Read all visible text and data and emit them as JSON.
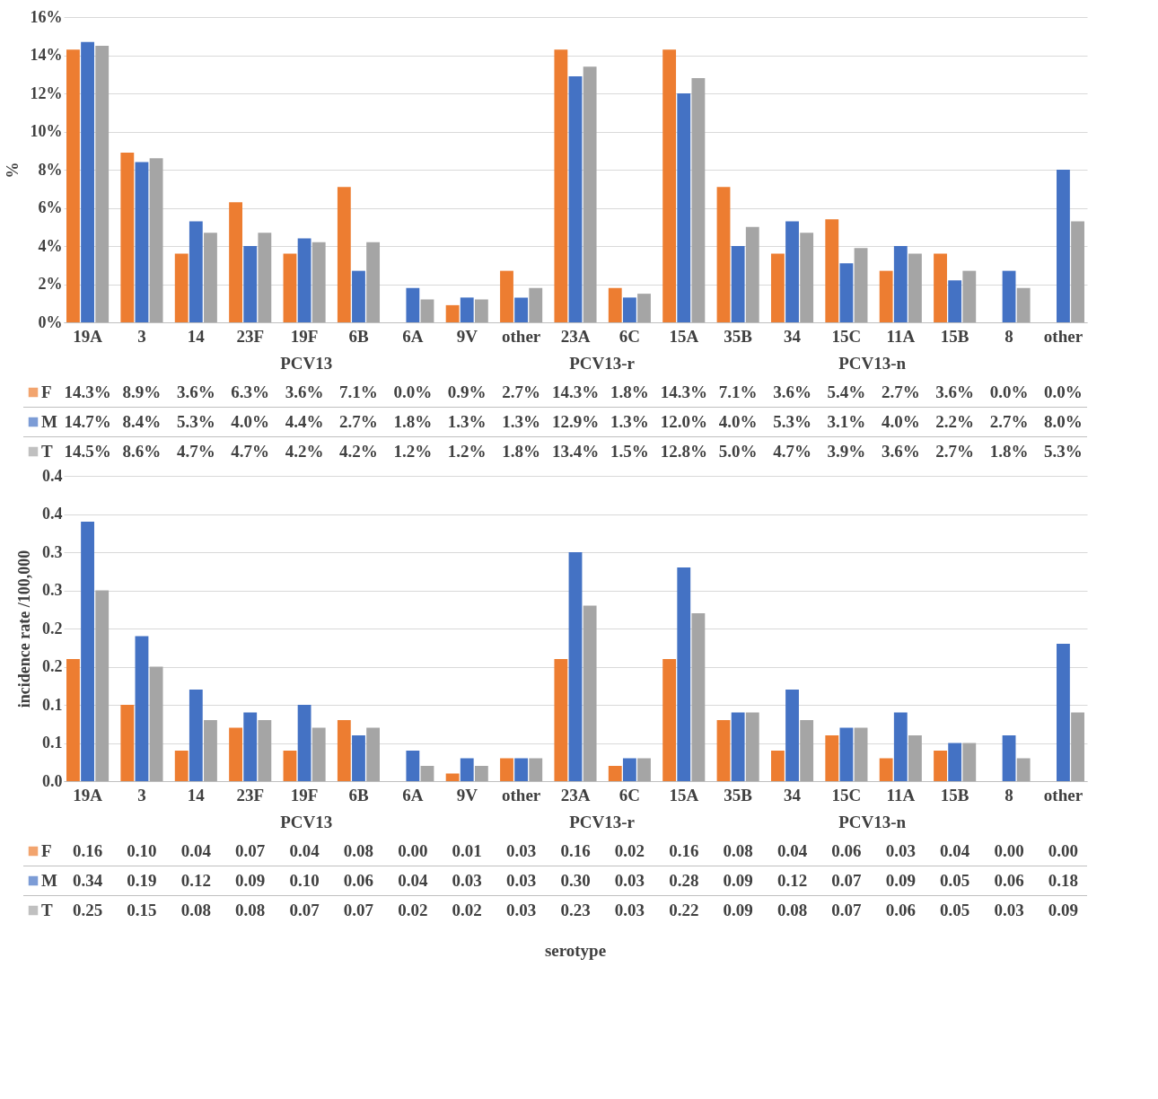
{
  "chart_data": [
    {
      "type": "bar",
      "ylabel": "%",
      "grid": "y",
      "legend": "bottom",
      "categories": [
        "19A",
        "3",
        "14",
        "23F",
        "19F",
        "6B",
        "6A",
        "9V",
        "other",
        "23A",
        "6C",
        "15A",
        "35B",
        "34",
        "15C",
        "11A",
        "15B",
        "8",
        "other"
      ],
      "ylim": [
        0,
        16
      ],
      "yticks": [
        {
          "value": 0,
          "label": "0%"
        },
        {
          "value": 2,
          "label": "2%"
        },
        {
          "value": 4,
          "label": "4%"
        },
        {
          "value": 6,
          "label": "6%"
        },
        {
          "value": 8,
          "label": "8%"
        },
        {
          "value": 10,
          "label": "10%"
        },
        {
          "value": 12,
          "label": "12%"
        },
        {
          "value": 14,
          "label": "14%"
        },
        {
          "value": 16,
          "label": "16%"
        }
      ],
      "annotations": [
        "PCV13",
        "PCV13-r",
        "PCV13-n"
      ],
      "series": [
        {
          "name": "F",
          "color": "#ed7d31",
          "values": [
            14.3,
            8.9,
            3.6,
            6.3,
            3.6,
            7.1,
            0.0,
            0.9,
            2.7,
            14.3,
            1.8,
            14.3,
            7.1,
            3.6,
            5.4,
            2.7,
            3.6,
            0.0,
            0.0
          ],
          "value_labels": [
            "14.3%",
            "8.9%",
            "3.6%",
            "6.3%",
            "3.6%",
            "7.1%",
            "0.0%",
            "0.9%",
            "2.7%",
            "14.3%",
            "1.8%",
            "14.3%",
            "7.1%",
            "3.6%",
            "5.4%",
            "2.7%",
            "3.6%",
            "0.0%",
            "0.0%"
          ]
        },
        {
          "name": "M",
          "color": "#4472c4",
          "values": [
            14.7,
            8.4,
            5.3,
            4.0,
            4.4,
            2.7,
            1.8,
            1.3,
            1.3,
            12.9,
            1.3,
            12.0,
            4.0,
            5.3,
            3.1,
            4.0,
            2.2,
            2.7,
            8.0
          ],
          "value_labels": [
            "14.7%",
            "8.4%",
            "5.3%",
            "4.0%",
            "4.4%",
            "2.7%",
            "1.8%",
            "1.3%",
            "1.3%",
            "12.9%",
            "1.3%",
            "12.0%",
            "4.0%",
            "5.3%",
            "3.1%",
            "4.0%",
            "2.2%",
            "2.7%",
            "8.0%"
          ]
        },
        {
          "name": "T",
          "color": "#a5a5a5",
          "values": [
            14.5,
            8.6,
            4.7,
            4.7,
            4.2,
            4.2,
            1.2,
            1.2,
            1.8,
            13.4,
            1.5,
            12.8,
            5.0,
            4.7,
            3.9,
            3.6,
            2.7,
            1.8,
            5.3
          ],
          "value_labels": [
            "14.5%",
            "8.6%",
            "4.7%",
            "4.7%",
            "4.2%",
            "4.2%",
            "1.2%",
            "1.2%",
            "1.8%",
            "13.4%",
            "1.5%",
            "12.8%",
            "5.0%",
            "4.7%",
            "3.9%",
            "3.6%",
            "2.7%",
            "1.8%",
            "5.3%"
          ]
        }
      ]
    },
    {
      "type": "bar",
      "ylabel": "incidence rate /100,000",
      "xlabel": "serotype",
      "grid": "y",
      "legend": "bottom",
      "categories": [
        "19A",
        "3",
        "14",
        "23F",
        "19F",
        "6B",
        "6A",
        "9V",
        "other",
        "23A",
        "6C",
        "15A",
        "35B",
        "34",
        "15C",
        "11A",
        "15B",
        "8",
        "other"
      ],
      "ylim": [
        0,
        0.4
      ],
      "yticks": [
        {
          "value": 0,
          "label": "0.0"
        },
        {
          "value": 0.05,
          "label": "0.1"
        },
        {
          "value": 0.1,
          "label": "0.1"
        },
        {
          "value": 0.15,
          "label": "0.2"
        },
        {
          "value": 0.2,
          "label": "0.2"
        },
        {
          "value": 0.25,
          "label": "0.3"
        },
        {
          "value": 0.3,
          "label": "0.3"
        },
        {
          "value": 0.35,
          "label": "0.4"
        },
        {
          "value": 0.4,
          "label": "0.4"
        }
      ],
      "annotations": [
        "PCV13",
        "PCV13-r",
        "PCV13-n"
      ],
      "series": [
        {
          "name": "F",
          "color": "#ed7d31",
          "values": [
            0.16,
            0.1,
            0.04,
            0.07,
            0.04,
            0.08,
            0.0,
            0.01,
            0.03,
            0.16,
            0.02,
            0.16,
            0.08,
            0.04,
            0.06,
            0.03,
            0.04,
            0.0,
            0.0
          ],
          "value_labels": [
            "0.16",
            "0.10",
            "0.04",
            "0.07",
            "0.04",
            "0.08",
            "0.00",
            "0.01",
            "0.03",
            "0.16",
            "0.02",
            "0.16",
            "0.08",
            "0.04",
            "0.06",
            "0.03",
            "0.04",
            "0.00",
            "0.00"
          ]
        },
        {
          "name": "M",
          "color": "#4472c4",
          "values": [
            0.34,
            0.19,
            0.12,
            0.09,
            0.1,
            0.06,
            0.04,
            0.03,
            0.03,
            0.3,
            0.03,
            0.28,
            0.09,
            0.12,
            0.07,
            0.09,
            0.05,
            0.06,
            0.18
          ],
          "value_labels": [
            "0.34",
            "0.19",
            "0.12",
            "0.09",
            "0.10",
            "0.06",
            "0.04",
            "0.03",
            "0.03",
            "0.30",
            "0.03",
            "0.28",
            "0.09",
            "0.12",
            "0.07",
            "0.09",
            "0.05",
            "0.06",
            "0.18"
          ]
        },
        {
          "name": "T",
          "color": "#a5a5a5",
          "values": [
            0.25,
            0.15,
            0.08,
            0.08,
            0.07,
            0.07,
            0.02,
            0.02,
            0.03,
            0.23,
            0.03,
            0.22,
            0.09,
            0.08,
            0.07,
            0.06,
            0.05,
            0.03,
            0.09
          ],
          "value_labels": [
            "0.25",
            "0.15",
            "0.08",
            "0.08",
            "0.07",
            "0.07",
            "0.02",
            "0.02",
            "0.03",
            "0.23",
            "0.03",
            "0.22",
            "0.09",
            "0.08",
            "0.07",
            "0.06",
            "0.05",
            "0.03",
            "0.09"
          ]
        }
      ]
    }
  ]
}
